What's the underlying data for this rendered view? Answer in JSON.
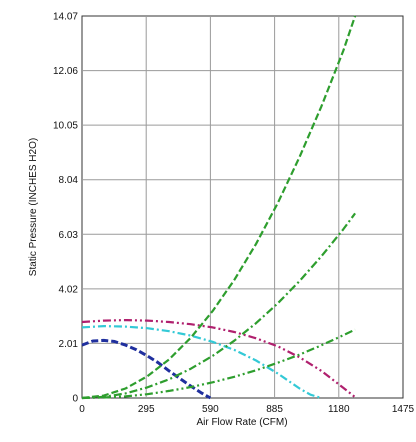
{
  "chart_data": {
    "type": "line",
    "xlabel": "Air Flow Rate (CFM)",
    "ylabel": "Static Pressure (INCHES H2O)",
    "xlim": [
      0,
      1475
    ],
    "ylim": [
      0,
      14.07
    ],
    "x_ticks": [
      "0",
      "295",
      "590",
      "885",
      "1180",
      "1475"
    ],
    "y_ticks": [
      "0",
      "2.01",
      "4.02",
      "6.03",
      "8.04",
      "10.05",
      "12.06",
      "14.07"
    ],
    "grid": true,
    "series": [
      {
        "color": "#1f2f9e",
        "dash": "dash",
        "x": [
          0,
          50,
          100,
          150,
          200,
          250,
          300,
          350,
          400,
          450,
          500,
          550,
          590
        ],
        "y": [
          1.95,
          2.1,
          2.12,
          2.08,
          1.95,
          1.78,
          1.55,
          1.3,
          1.0,
          0.72,
          0.44,
          0.18,
          0
        ]
      },
      {
        "color": "#33c9d6",
        "dash": "dash-dot",
        "x": [
          0,
          100,
          200,
          300,
          400,
          500,
          600,
          700,
          800,
          900,
          1000,
          1050,
          1100
        ],
        "y": [
          2.6,
          2.65,
          2.63,
          2.57,
          2.46,
          2.3,
          2.07,
          1.77,
          1.38,
          0.9,
          0.35,
          0.12,
          0
        ]
      },
      {
        "color": "#b0206e",
        "dash": "dash-dot-dot",
        "x": [
          0,
          100,
          200,
          300,
          400,
          500,
          600,
          700,
          800,
          900,
          1000,
          1100,
          1200,
          1260
        ],
        "y": [
          2.8,
          2.85,
          2.87,
          2.85,
          2.8,
          2.72,
          2.6,
          2.43,
          2.2,
          1.9,
          1.5,
          1.0,
          0.38,
          0
        ]
      },
      {
        "color": "#2e9e2e",
        "dash": "dash",
        "x": [
          0,
          100,
          200,
          300,
          400,
          500,
          600,
          700,
          800,
          900,
          1000,
          1100,
          1200,
          1255
        ],
        "y": [
          0,
          0.09,
          0.35,
          0.8,
          1.42,
          2.22,
          3.2,
          4.35,
          5.68,
          7.19,
          8.88,
          10.74,
          12.78,
          14.07
        ]
      },
      {
        "color": "#2e9e2e",
        "dash": "dash-dot",
        "x": [
          0,
          100,
          200,
          300,
          400,
          500,
          600,
          700,
          800,
          900,
          1000,
          1100,
          1200,
          1255
        ],
        "y": [
          0,
          0.04,
          0.17,
          0.39,
          0.69,
          1.08,
          1.55,
          2.11,
          2.76,
          3.49,
          4.31,
          5.22,
          6.21,
          6.8
        ]
      },
      {
        "color": "#2e9e2e",
        "dash": "dash-dot-dot",
        "x": [
          0,
          100,
          200,
          300,
          400,
          500,
          600,
          700,
          800,
          900,
          1000,
          1100,
          1200,
          1255
        ],
        "y": [
          0,
          0.02,
          0.06,
          0.14,
          0.26,
          0.4,
          0.58,
          0.78,
          1.02,
          1.3,
          1.6,
          1.94,
          2.31,
          2.52
        ]
      }
    ]
  }
}
